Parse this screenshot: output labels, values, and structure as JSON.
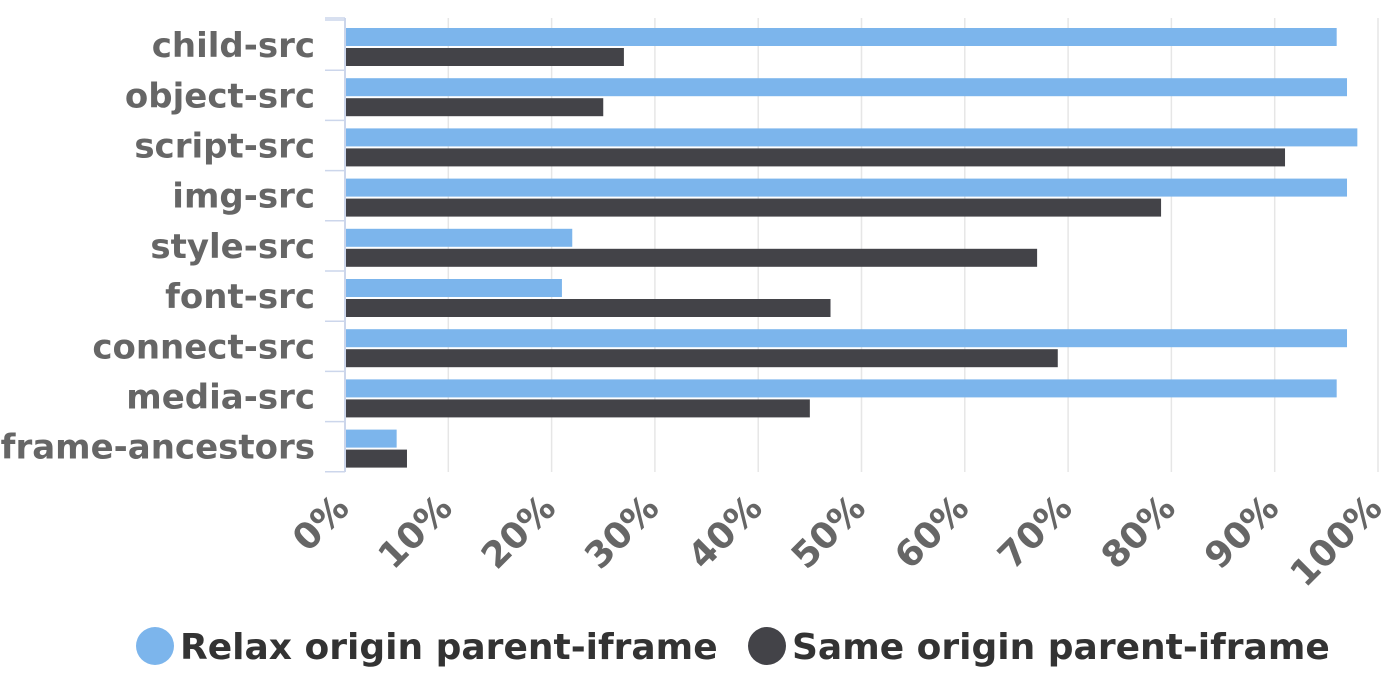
{
  "chart_data": {
    "type": "bar",
    "orientation": "horizontal",
    "categories": [
      "child-src",
      "object-src",
      "script-src",
      "img-src",
      "style-src",
      "font-src",
      "connect-src",
      "media-src",
      "frame-ancestors"
    ],
    "series": [
      {
        "name": "Relax origin parent-iframe",
        "color": "#7cb5ec",
        "values": [
          96,
          97,
          98,
          97,
          22,
          21,
          97,
          96,
          5
        ]
      },
      {
        "name": "Same origin parent-iframe",
        "color": "#434348",
        "values": [
          27,
          25,
          91,
          79,
          67,
          47,
          69,
          45,
          6
        ]
      }
    ],
    "xticks": [
      "0%",
      "10%",
      "20%",
      "30%",
      "40%",
      "50%",
      "60%",
      "70%",
      "80%",
      "90%",
      "100%"
    ],
    "xlim": [
      0,
      100
    ],
    "grid": true,
    "legend_position": "bottom"
  }
}
